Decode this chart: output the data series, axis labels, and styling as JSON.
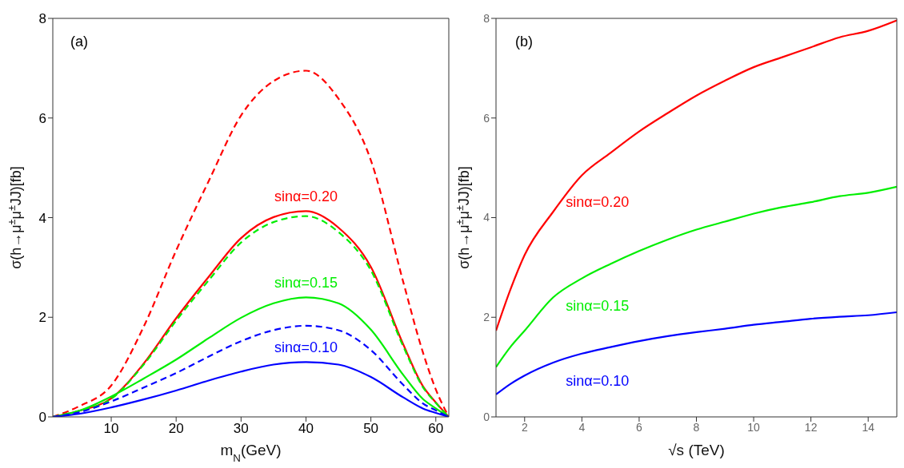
{
  "chart_data": [
    {
      "type": "line",
      "annotations": [
        "(a)"
      ],
      "xlabel": "m$_{N}$(GeV)",
      "ylabel": "σ(h→μ$^{±}$μ$^{±}$JJ)[fb]",
      "x": [
        1,
        5,
        10,
        15,
        20,
        25,
        30,
        35,
        40,
        45,
        50,
        55,
        58,
        60,
        62
      ],
      "xlim": [
        1,
        62
      ],
      "xticks": [
        10,
        20,
        30,
        40,
        50,
        60
      ],
      "ylim": [
        0,
        8
      ],
      "yticks": [
        0,
        2,
        4,
        6,
        8
      ],
      "grid": false,
      "legend": false,
      "series": [
        {
          "color": "#ff0000",
          "line_style": "dashed",
          "values": [
            0,
            0.21,
            0.63,
            1.81,
            3.34,
            4.73,
            6.05,
            6.74,
            6.95,
            6.39,
            5.15,
            2.7,
            1.3,
            0.55,
            0
          ]
        },
        {
          "name": "sinα=0.20",
          "color": "#ff0000",
          "line_style": "solid",
          "values": [
            0,
            0.12,
            0.37,
            1.07,
            1.98,
            2.81,
            3.59,
            4.01,
            4.13,
            3.8,
            3.01,
            1.45,
            0.62,
            0.29,
            0
          ]
        },
        {
          "color": "#00ee00",
          "line_style": "dashed",
          "values": [
            0,
            0.12,
            0.36,
            1.05,
            1.93,
            2.74,
            3.5,
            3.91,
            4.03,
            3.71,
            2.94,
            1.41,
            0.6,
            0.28,
            0
          ]
        },
        {
          "name": "sinα=0.15",
          "color": "#00ee00",
          "line_style": "solid",
          "values": [
            0,
            0.12,
            0.41,
            0.77,
            1.15,
            1.58,
            1.99,
            2.28,
            2.4,
            2.28,
            1.75,
            0.84,
            0.36,
            0.17,
            0
          ]
        },
        {
          "color": "#0000ff",
          "line_style": "dashed",
          "values": [
            0,
            0.09,
            0.31,
            0.59,
            0.88,
            1.21,
            1.52,
            1.74,
            1.83,
            1.74,
            1.34,
            0.64,
            0.27,
            0.13,
            0
          ]
        },
        {
          "name": "sinα=0.10",
          "color": "#0000ff",
          "line_style": "solid",
          "values": [
            0,
            0.06,
            0.19,
            0.35,
            0.53,
            0.73,
            0.91,
            1.05,
            1.1,
            1.05,
            0.8,
            0.39,
            0.17,
            0.08,
            0
          ]
        }
      ]
    },
    {
      "type": "line",
      "annotations": [
        "(b)"
      ],
      "xlabel": "√s (TeV)",
      "ylabel": "σ(h→μ$^{±}$μ$^{±}$JJ)[fb]",
      "x": [
        1,
        1.5,
        2,
        3,
        4,
        5,
        6,
        7,
        8,
        9,
        10,
        11,
        12,
        13,
        14,
        15
      ],
      "xlim": [
        1,
        15
      ],
      "xticks": [
        2,
        4,
        6,
        8,
        10,
        12,
        14
      ],
      "ylim": [
        0,
        8
      ],
      "yticks": [
        0,
        2,
        4,
        6,
        8
      ],
      "grid": false,
      "legend": false,
      "series": [
        {
          "name": "sinα=0.20",
          "color": "#ff0000",
          "line_style": "solid",
          "values": [
            1.73,
            2.55,
            3.25,
            4.12,
            4.85,
            5.3,
            5.73,
            6.1,
            6.45,
            6.75,
            7.02,
            7.22,
            7.42,
            7.62,
            7.75,
            7.96
          ]
        },
        {
          "name": "sinα=0.15",
          "color": "#00ee00",
          "line_style": "solid",
          "values": [
            1.0,
            1.4,
            1.73,
            2.4,
            2.78,
            3.07,
            3.33,
            3.56,
            3.76,
            3.92,
            4.08,
            4.21,
            4.31,
            4.43,
            4.5,
            4.62
          ]
        },
        {
          "name": "sinα=0.10",
          "color": "#0000ff",
          "line_style": "solid",
          "values": [
            0.45,
            0.66,
            0.83,
            1.09,
            1.27,
            1.4,
            1.52,
            1.62,
            1.7,
            1.77,
            1.85,
            1.91,
            1.97,
            2.01,
            2.04,
            2.1
          ]
        }
      ]
    }
  ]
}
